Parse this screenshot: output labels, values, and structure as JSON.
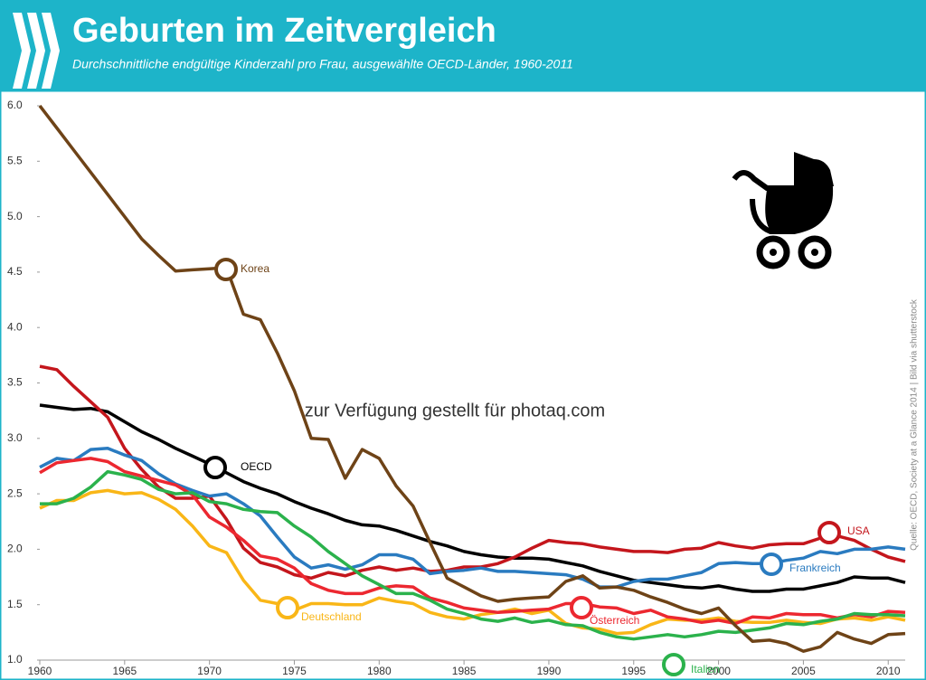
{
  "chart_data": {
    "type": "line",
    "title": "Geburten im Zeitvergleich",
    "subtitle": "Durchschnittliche endgültige Kinderzahl pro Frau, ausgewählte OECD-Länder, 1960-2011",
    "x": [
      1960,
      1961,
      1962,
      1963,
      1964,
      1965,
      1966,
      1967,
      1968,
      1969,
      1970,
      1971,
      1972,
      1973,
      1974,
      1975,
      1976,
      1977,
      1978,
      1979,
      1980,
      1981,
      1982,
      1983,
      1984,
      1985,
      1986,
      1987,
      1988,
      1989,
      1990,
      1991,
      1992,
      1993,
      1994,
      1995,
      1996,
      1997,
      1998,
      1999,
      2000,
      2001,
      2002,
      2003,
      2004,
      2005,
      2006,
      2007,
      2008,
      2009,
      2010,
      2011
    ],
    "xlim": [
      1960,
      2011
    ],
    "xticks": [
      1960,
      1965,
      1970,
      1975,
      1980,
      1985,
      1990,
      1995,
      2000,
      2005,
      2010
    ],
    "ylim": [
      1,
      6
    ],
    "yticks": [
      {
        "value": 1,
        "label": "1.0"
      },
      1.5,
      {
        "value": 2,
        "label": "2.0"
      },
      2.5,
      {
        "value": 3,
        "label": "3.0"
      },
      3.5,
      {
        "value": 4,
        "label": "4.0"
      },
      4.5,
      {
        "value": 5,
        "label": "5.0"
      },
      5.5,
      {
        "value": 6,
        "label": "6.0"
      }
    ],
    "grid": false,
    "series": [
      {
        "name": "Korea",
        "color": "#6e4317",
        "values": [
          6.0,
          5.8,
          5.6,
          5.4,
          5.2,
          5.0,
          4.8,
          4.65,
          4.51,
          4.52,
          4.53,
          4.54,
          4.12,
          4.07,
          3.77,
          3.43,
          3.0,
          2.99,
          2.64,
          2.9,
          2.82,
          2.57,
          2.39,
          2.06,
          1.74,
          1.66,
          1.58,
          1.53,
          1.55,
          1.56,
          1.57,
          1.71,
          1.76,
          1.65,
          1.66,
          1.63,
          1.57,
          1.52,
          1.46,
          1.42,
          1.47,
          1.31,
          1.17,
          1.18,
          1.15,
          1.08,
          1.12,
          1.25,
          1.19,
          1.15,
          1.23,
          1.24
        ]
      },
      {
        "name": "OECD",
        "color": "#000000",
        "values": [
          3.3,
          3.28,
          3.26,
          3.27,
          3.24,
          3.15,
          3.06,
          2.99,
          2.91,
          2.84,
          2.77,
          2.69,
          2.61,
          2.55,
          2.5,
          2.43,
          2.37,
          2.32,
          2.26,
          2.22,
          2.21,
          2.17,
          2.12,
          2.07,
          2.03,
          1.98,
          1.95,
          1.93,
          1.92,
          1.92,
          1.91,
          1.88,
          1.85,
          1.8,
          1.76,
          1.72,
          1.7,
          1.68,
          1.66,
          1.65,
          1.67,
          1.64,
          1.62,
          1.62,
          1.64,
          1.64,
          1.67,
          1.7,
          1.75,
          1.74,
          1.74,
          1.7
        ]
      },
      {
        "name": "USA",
        "color": "#c4161c",
        "values": [
          3.65,
          3.62,
          3.47,
          3.33,
          3.19,
          2.91,
          2.72,
          2.56,
          2.46,
          2.46,
          2.48,
          2.27,
          2.01,
          1.88,
          1.84,
          1.77,
          1.74,
          1.79,
          1.76,
          1.81,
          1.84,
          1.81,
          1.83,
          1.8,
          1.81,
          1.84,
          1.84,
          1.87,
          1.93,
          2.01,
          2.08,
          2.06,
          2.05,
          2.02,
          2.0,
          1.98,
          1.98,
          1.97,
          2.0,
          2.01,
          2.06,
          2.03,
          2.01,
          2.04,
          2.05,
          2.05,
          2.1,
          2.12,
          2.08,
          2.0,
          1.93,
          1.89
        ]
      },
      {
        "name": "Frankreich",
        "color": "#2a7bc0",
        "values": [
          2.74,
          2.82,
          2.8,
          2.9,
          2.91,
          2.85,
          2.8,
          2.68,
          2.59,
          2.53,
          2.48,
          2.5,
          2.41,
          2.3,
          2.11,
          1.93,
          1.83,
          1.86,
          1.82,
          1.86,
          1.95,
          1.95,
          1.91,
          1.78,
          1.8,
          1.81,
          1.83,
          1.8,
          1.8,
          1.79,
          1.78,
          1.77,
          1.73,
          1.66,
          1.66,
          1.71,
          1.73,
          1.73,
          1.76,
          1.79,
          1.87,
          1.88,
          1.87,
          1.87,
          1.9,
          1.92,
          1.98,
          1.96,
          2.0,
          2.0,
          2.02,
          2.0
        ]
      },
      {
        "name": "Deutschland",
        "color": "#f9b617",
        "values": [
          2.37,
          2.44,
          2.44,
          2.51,
          2.53,
          2.5,
          2.51,
          2.45,
          2.36,
          2.21,
          2.03,
          1.97,
          1.72,
          1.54,
          1.51,
          1.45,
          1.51,
          1.51,
          1.5,
          1.5,
          1.56,
          1.53,
          1.51,
          1.43,
          1.39,
          1.37,
          1.41,
          1.43,
          1.46,
          1.42,
          1.45,
          1.33,
          1.29,
          1.28,
          1.24,
          1.25,
          1.32,
          1.37,
          1.36,
          1.36,
          1.38,
          1.35,
          1.34,
          1.34,
          1.36,
          1.34,
          1.33,
          1.37,
          1.38,
          1.36,
          1.39,
          1.36
        ]
      },
      {
        "name": "Österreich",
        "color": "#ec2830",
        "values": [
          2.69,
          2.78,
          2.8,
          2.82,
          2.79,
          2.7,
          2.66,
          2.62,
          2.58,
          2.49,
          2.29,
          2.2,
          2.08,
          1.94,
          1.91,
          1.83,
          1.69,
          1.63,
          1.6,
          1.6,
          1.65,
          1.67,
          1.66,
          1.56,
          1.52,
          1.47,
          1.45,
          1.43,
          1.44,
          1.45,
          1.46,
          1.51,
          1.51,
          1.48,
          1.47,
          1.42,
          1.45,
          1.39,
          1.37,
          1.34,
          1.36,
          1.33,
          1.39,
          1.38,
          1.42,
          1.41,
          1.41,
          1.38,
          1.41,
          1.39,
          1.44,
          1.43
        ]
      },
      {
        "name": "Italien",
        "color": "#2bb24c",
        "values": [
          2.41,
          2.41,
          2.46,
          2.56,
          2.7,
          2.67,
          2.63,
          2.54,
          2.5,
          2.51,
          2.43,
          2.41,
          2.36,
          2.34,
          2.33,
          2.21,
          2.11,
          1.98,
          1.87,
          1.76,
          1.68,
          1.6,
          1.6,
          1.54,
          1.46,
          1.42,
          1.37,
          1.35,
          1.38,
          1.34,
          1.36,
          1.32,
          1.31,
          1.25,
          1.21,
          1.19,
          1.21,
          1.23,
          1.21,
          1.23,
          1.26,
          1.25,
          1.27,
          1.29,
          1.33,
          1.32,
          1.35,
          1.37,
          1.42,
          1.41,
          1.41,
          1.4
        ]
      }
    ],
    "annotations": {
      "watermark": "zur Verfügung gestellt für photaq.com",
      "source": "Quelle: OECD, Society at a Glance 2014 | Bild via shutterstock"
    }
  }
}
